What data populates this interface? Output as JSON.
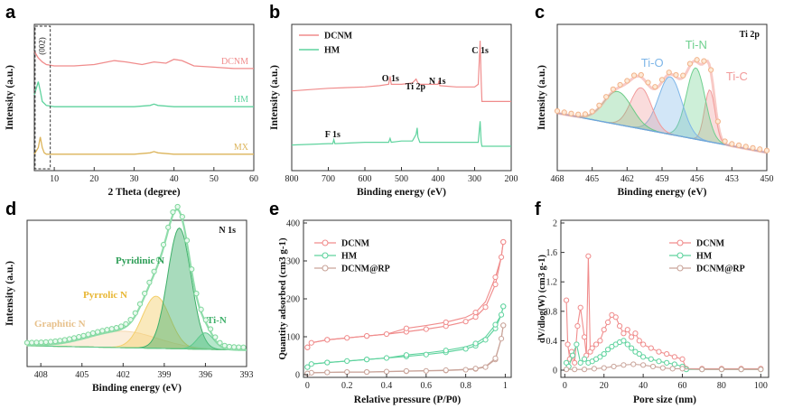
{
  "colors": {
    "dcnm": "#f08c8c",
    "hm": "#5fd39e",
    "mx": "#dcb45a",
    "rp": "#c9a49a",
    "tic": "#f19a9a",
    "tio": "#7eb6e8",
    "tin": "#6fd08f",
    "blue": "#6fa6dc",
    "n_yellow": "#f3cf6a",
    "n_graphitic": "#f6d9b0"
  },
  "chart_data": [
    {
      "panel": "a",
      "type": "line",
      "xlabel": "2 Theta (degree)",
      "ylabel": "Intensity (a.u.)",
      "xlim": [
        5,
        60
      ],
      "xticks": [
        10,
        20,
        30,
        40,
        50,
        60
      ],
      "annotations": [
        "(002)"
      ],
      "series": [
        {
          "name": "DCNM",
          "x": [
            5,
            6,
            7,
            8,
            10,
            15,
            20,
            25,
            28,
            32,
            35,
            38,
            40,
            42,
            45,
            50,
            55,
            60
          ],
          "y": [
            0.85,
            0.8,
            0.77,
            0.75,
            0.74,
            0.74,
            0.75,
            0.78,
            0.77,
            0.75,
            0.77,
            0.76,
            0.79,
            0.78,
            0.74,
            0.73,
            0.72,
            0.72
          ]
        },
        {
          "name": "HM",
          "x": [
            5,
            6,
            6.5,
            7,
            8,
            10,
            15,
            20,
            25,
            30,
            34,
            35,
            36,
            40,
            45,
            50,
            55,
            60
          ],
          "y": [
            0.52,
            0.62,
            0.55,
            0.47,
            0.44,
            0.43,
            0.43,
            0.43,
            0.43,
            0.43,
            0.44,
            0.45,
            0.44,
            0.43,
            0.43,
            0.43,
            0.43,
            0.43
          ]
        },
        {
          "name": "MX",
          "x": [
            5,
            6,
            6.5,
            7,
            7.5,
            8,
            10,
            15,
            20,
            25,
            30,
            34,
            35,
            36,
            40,
            45,
            50,
            55,
            60
          ],
          "y": [
            0.07,
            0.12,
            0.2,
            0.12,
            0.08,
            0.07,
            0.07,
            0.07,
            0.07,
            0.07,
            0.07,
            0.08,
            0.09,
            0.08,
            0.07,
            0.07,
            0.07,
            0.07,
            0.07
          ]
        }
      ]
    },
    {
      "panel": "b",
      "type": "line",
      "xlabel": "Binding energy (eV)",
      "ylabel": "Intensity (a.u.)",
      "xlim": [
        800,
        200
      ],
      "xticks": [
        800,
        700,
        600,
        500,
        400,
        300,
        200
      ],
      "peak_labels": [
        "O 1s",
        "Ti 2p",
        "N 1s",
        "C 1s",
        "F 1s"
      ],
      "series": [
        {
          "name": "DCNM",
          "x": [
            800,
            700,
            600,
            560,
            535,
            531,
            528,
            500,
            470,
            460,
            455,
            450,
            420,
            400,
            397,
            395,
            350,
            300,
            290,
            285,
            282,
            280,
            250,
            200
          ],
          "y": [
            0.55,
            0.57,
            0.58,
            0.59,
            0.6,
            0.66,
            0.6,
            0.6,
            0.61,
            0.64,
            0.61,
            0.6,
            0.6,
            0.6,
            0.63,
            0.59,
            0.58,
            0.58,
            0.6,
            0.93,
            0.62,
            0.47,
            0.47,
            0.47
          ]
        },
        {
          "name": "HM",
          "x": [
            800,
            700,
            688,
            685,
            682,
            600,
            560,
            535,
            531,
            528,
            500,
            470,
            460,
            457,
            455,
            450,
            400,
            300,
            290,
            285,
            282,
            280,
            250,
            200
          ],
          "y": [
            0.14,
            0.15,
            0.15,
            0.18,
            0.15,
            0.16,
            0.16,
            0.16,
            0.19,
            0.16,
            0.17,
            0.17,
            0.22,
            0.27,
            0.2,
            0.16,
            0.16,
            0.16,
            0.16,
            0.32,
            0.16,
            0.13,
            0.13,
            0.13
          ]
        }
      ]
    },
    {
      "panel": "c",
      "type": "line",
      "title": "Ti 2p",
      "xlabel": "Binding energy (eV)",
      "ylabel": "Intensity (a.u.)",
      "xlim": [
        468,
        450
      ],
      "xticks": [
        468,
        465,
        462,
        459,
        456,
        453,
        450
      ],
      "components": [
        {
          "name": "Ti-C",
          "center": 454.9,
          "height": 0.58
        },
        {
          "name": "Ti-N",
          "center": 456.1,
          "height": 0.72
        },
        {
          "name": "Ti-O",
          "center": 458.3,
          "height": 0.62
        },
        {
          "name": "",
          "center": 460.8,
          "height": 0.5
        },
        {
          "name": "",
          "center": 462.8,
          "height": 0.44
        }
      ]
    },
    {
      "panel": "d",
      "type": "line",
      "title": "N 1s",
      "xlabel": "Binding energy (eV)",
      "ylabel": "Intensity (a.u.)",
      "xlim": [
        409,
        393
      ],
      "xticks": [
        408,
        405,
        402,
        399,
        396,
        393
      ],
      "components": [
        {
          "name": "Pyridinic N",
          "center": 397.9,
          "height": 0.88
        },
        {
          "name": "Pyrrolic N",
          "center": 399.6,
          "height": 0.38
        },
        {
          "name": "Graphitic N",
          "center": 402.0,
          "height": 0.12
        },
        {
          "name": "Ti-N",
          "center": 396.0,
          "height": 0.12
        }
      ]
    },
    {
      "panel": "e",
      "type": "line",
      "xlabel": "Relative pressure (P/P0)",
      "ylabel": "Quantity adsorbed (cm3 g-1)",
      "xlim": [
        0.0,
        1.0
      ],
      "ylim": [
        0,
        400
      ],
      "xticks": [
        0.0,
        0.2,
        0.4,
        0.6,
        0.8,
        1.0
      ],
      "yticks": [
        0,
        100,
        200,
        300,
        400
      ],
      "series": [
        {
          "name": "DCNM",
          "x": [
            0.0,
            0.02,
            0.1,
            0.2,
            0.3,
            0.4,
            0.5,
            0.6,
            0.7,
            0.8,
            0.85,
            0.9,
            0.95,
            0.98,
            0.99
          ],
          "y": [
            72,
            84,
            92,
            97,
            102,
            107,
            113,
            120,
            128,
            140,
            152,
            178,
            238,
            310,
            350
          ]
        },
        {
          "name": "HM",
          "x": [
            0.0,
            0.02,
            0.1,
            0.2,
            0.3,
            0.4,
            0.5,
            0.6,
            0.7,
            0.8,
            0.85,
            0.9,
            0.95,
            0.98,
            0.99
          ],
          "y": [
            20,
            28,
            32,
            36,
            40,
            44,
            48,
            53,
            59,
            68,
            76,
            92,
            122,
            158,
            180
          ]
        },
        {
          "name": "DCNM@RP",
          "x": [
            0.0,
            0.02,
            0.1,
            0.2,
            0.3,
            0.4,
            0.5,
            0.6,
            0.7,
            0.8,
            0.85,
            0.9,
            0.95,
            0.98,
            0.99
          ],
          "y": [
            3,
            5,
            6,
            7,
            7,
            8,
            9,
            10,
            11,
            13,
            15,
            20,
            40,
            95,
            130
          ]
        }
      ]
    },
    {
      "panel": "f",
      "type": "line",
      "xlabel": "Pore size (nm)",
      "ylabel": "dV/dlog(W) (cm3 g-1)",
      "xlim": [
        0,
        100
      ],
      "ylim": [
        0.0,
        2.0
      ],
      "xticks": [
        0,
        20,
        40,
        60,
        80,
        100
      ],
      "yticks": [
        0.0,
        0.4,
        0.8,
        1.2,
        1.6,
        2.0
      ],
      "series": [
        {
          "name": "DCNM",
          "x": [
            0.8,
            1.5,
            2.5,
            3.5,
            5,
            6.5,
            8,
            10,
            11,
            12,
            13,
            14,
            16,
            18,
            20,
            22,
            24,
            26,
            28,
            30,
            32,
            34,
            36,
            38,
            40,
            44,
            48,
            52,
            56,
            60,
            62,
            70,
            80,
            90,
            100
          ],
          "y": [
            0.95,
            0.35,
            0.15,
            0.25,
            0.1,
            0.6,
            0.85,
            0.45,
            0.2,
            1.55,
            0.25,
            0.3,
            0.35,
            0.4,
            0.55,
            0.65,
            0.75,
            0.72,
            0.6,
            0.5,
            0.55,
            0.45,
            0.5,
            0.4,
            0.35,
            0.3,
            0.25,
            0.22,
            0.18,
            0.15,
            0.02,
            0.02,
            0.02,
            0.02,
            0.02
          ]
        },
        {
          "name": "HM",
          "x": [
            0.8,
            2,
            4,
            6,
            8,
            10,
            12,
            14,
            16,
            18,
            20,
            22,
            24,
            26,
            28,
            30,
            32,
            34,
            36,
            38,
            40,
            44,
            48,
            52,
            56,
            60,
            62,
            70,
            80,
            90,
            100
          ],
          "y": [
            0.1,
            0.05,
            0.2,
            0.35,
            0.1,
            0.15,
            0.1,
            0.12,
            0.15,
            0.18,
            0.22,
            0.28,
            0.32,
            0.35,
            0.38,
            0.4,
            0.35,
            0.3,
            0.25,
            0.22,
            0.18,
            0.15,
            0.12,
            0.1,
            0.08,
            0.05,
            0.01,
            0.01,
            0.01,
            0.01,
            0.01
          ]
        },
        {
          "name": "DCNM@RP",
          "x": [
            0.8,
            5,
            10,
            15,
            20,
            25,
            30,
            35,
            40,
            45,
            50,
            55,
            60,
            70,
            80,
            90,
            100
          ],
          "y": [
            0.01,
            0.01,
            0.01,
            0.02,
            0.03,
            0.05,
            0.07,
            0.08,
            0.07,
            0.05,
            0.03,
            0.02,
            0.02,
            0.01,
            0.01,
            0.01,
            0.01
          ]
        }
      ]
    }
  ]
}
